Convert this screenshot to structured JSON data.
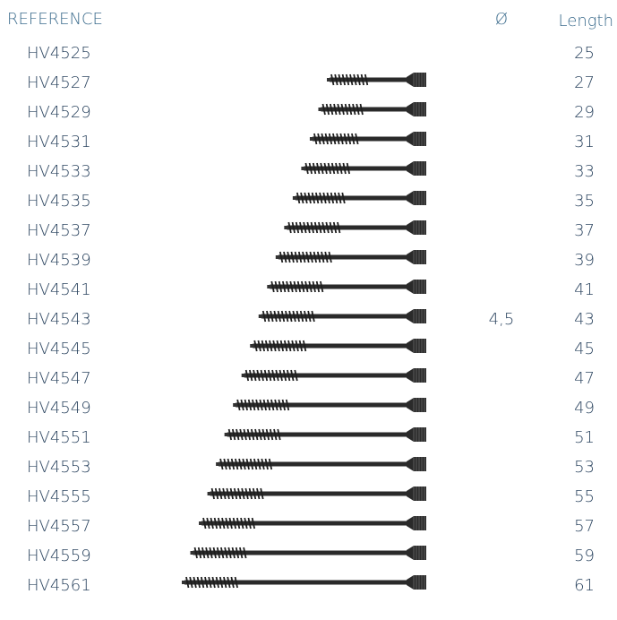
{
  "header": {
    "reference": "REFERENCE",
    "diameter": "Ø",
    "length": "Length"
  },
  "rows": [
    {
      "reference": "HV4525",
      "length": 25
    },
    {
      "reference": "HV4527",
      "length": 27
    },
    {
      "reference": "HV4529",
      "length": 29
    },
    {
      "reference": "HV4531",
      "length": 31
    },
    {
      "reference": "HV4533",
      "length": 33
    },
    {
      "reference": "HV4535",
      "length": 35
    },
    {
      "reference": "HV4537",
      "length": 37
    },
    {
      "reference": "HV4539",
      "length": 39
    },
    {
      "reference": "HV4541",
      "length": 41
    },
    {
      "reference": "HV4543",
      "diameter": "4,5",
      "length": 43
    },
    {
      "reference": "HV4545",
      "length": 45
    },
    {
      "reference": "HV4547",
      "length": 47
    },
    {
      "reference": "HV4549",
      "length": 49
    },
    {
      "reference": "HV4551",
      "length": 51
    },
    {
      "reference": "HV4553",
      "length": 53
    },
    {
      "reference": "HV4555",
      "length": 55
    },
    {
      "reference": "HV4557",
      "length": 57
    },
    {
      "reference": "HV4559",
      "length": 59
    },
    {
      "reference": "HV4561",
      "length": 61
    }
  ]
}
